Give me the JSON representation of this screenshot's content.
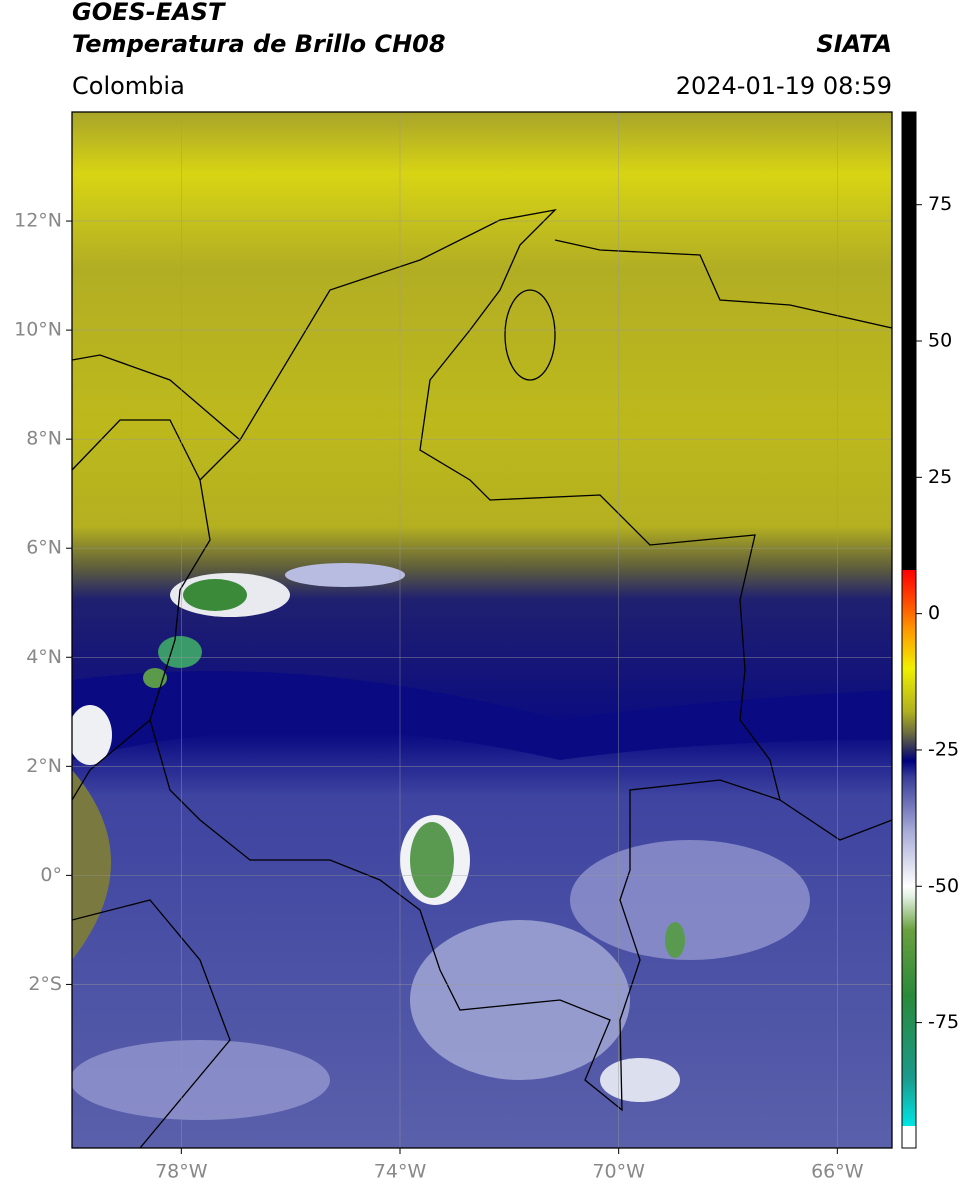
{
  "header": {
    "title_line1": "GOES-EAST",
    "title_line2": "Temperatura de Brillo CH08",
    "region": "Colombia",
    "source": "SIATA",
    "datetime": "2024-01-19 08:59"
  },
  "map": {
    "lon_range": [
      -80,
      -65
    ],
    "lat_range": [
      -5,
      14
    ],
    "lon_ticks": [
      {
        "value": -78,
        "label": "78°W"
      },
      {
        "value": -74,
        "label": "74°W"
      },
      {
        "value": -70,
        "label": "70°W"
      },
      {
        "value": -66,
        "label": "66°W"
      }
    ],
    "lat_ticks": [
      {
        "value": 12,
        "label": "12°N"
      },
      {
        "value": 10,
        "label": "10°N"
      },
      {
        "value": 8,
        "label": "8°N"
      },
      {
        "value": 6,
        "label": "6°N"
      },
      {
        "value": 4,
        "label": "4°N"
      },
      {
        "value": 2,
        "label": "2°N"
      },
      {
        "value": 0,
        "label": "0°"
      },
      {
        "value": -2,
        "label": "2°S"
      }
    ]
  },
  "colorbar": {
    "range": [
      -98,
      92
    ],
    "ticks": [
      75,
      50,
      25,
      0,
      -25,
      -50,
      -75
    ],
    "colormap": [
      {
        "value": -98,
        "color": "#ffffff"
      },
      {
        "value": -94,
        "color": "#ffffff"
      },
      {
        "value": -94,
        "color": "#00e5e5"
      },
      {
        "value": -85,
        "color": "#1a9a8a"
      },
      {
        "value": -70,
        "color": "#2a8a3a"
      },
      {
        "value": -58,
        "color": "#6aa040"
      },
      {
        "value": -52,
        "color": "#e0f0e0"
      },
      {
        "value": -50,
        "color": "#ffffff"
      },
      {
        "value": -40,
        "color": "#a8acd8"
      },
      {
        "value": -30,
        "color": "#3a3e9a"
      },
      {
        "value": -27,
        "color": "#000080"
      },
      {
        "value": -25,
        "color": "#2a2a60"
      },
      {
        "value": -22,
        "color": "#6a6a40"
      },
      {
        "value": -18,
        "color": "#b0b020"
      },
      {
        "value": -10,
        "color": "#f0f000"
      },
      {
        "value": -3,
        "color": "#ff9900"
      },
      {
        "value": 3,
        "color": "#ff4000"
      },
      {
        "value": 8,
        "color": "#ff0000"
      },
      {
        "value": 8,
        "color": "#000000"
      },
      {
        "value": 92,
        "color": "#000000"
      }
    ]
  }
}
